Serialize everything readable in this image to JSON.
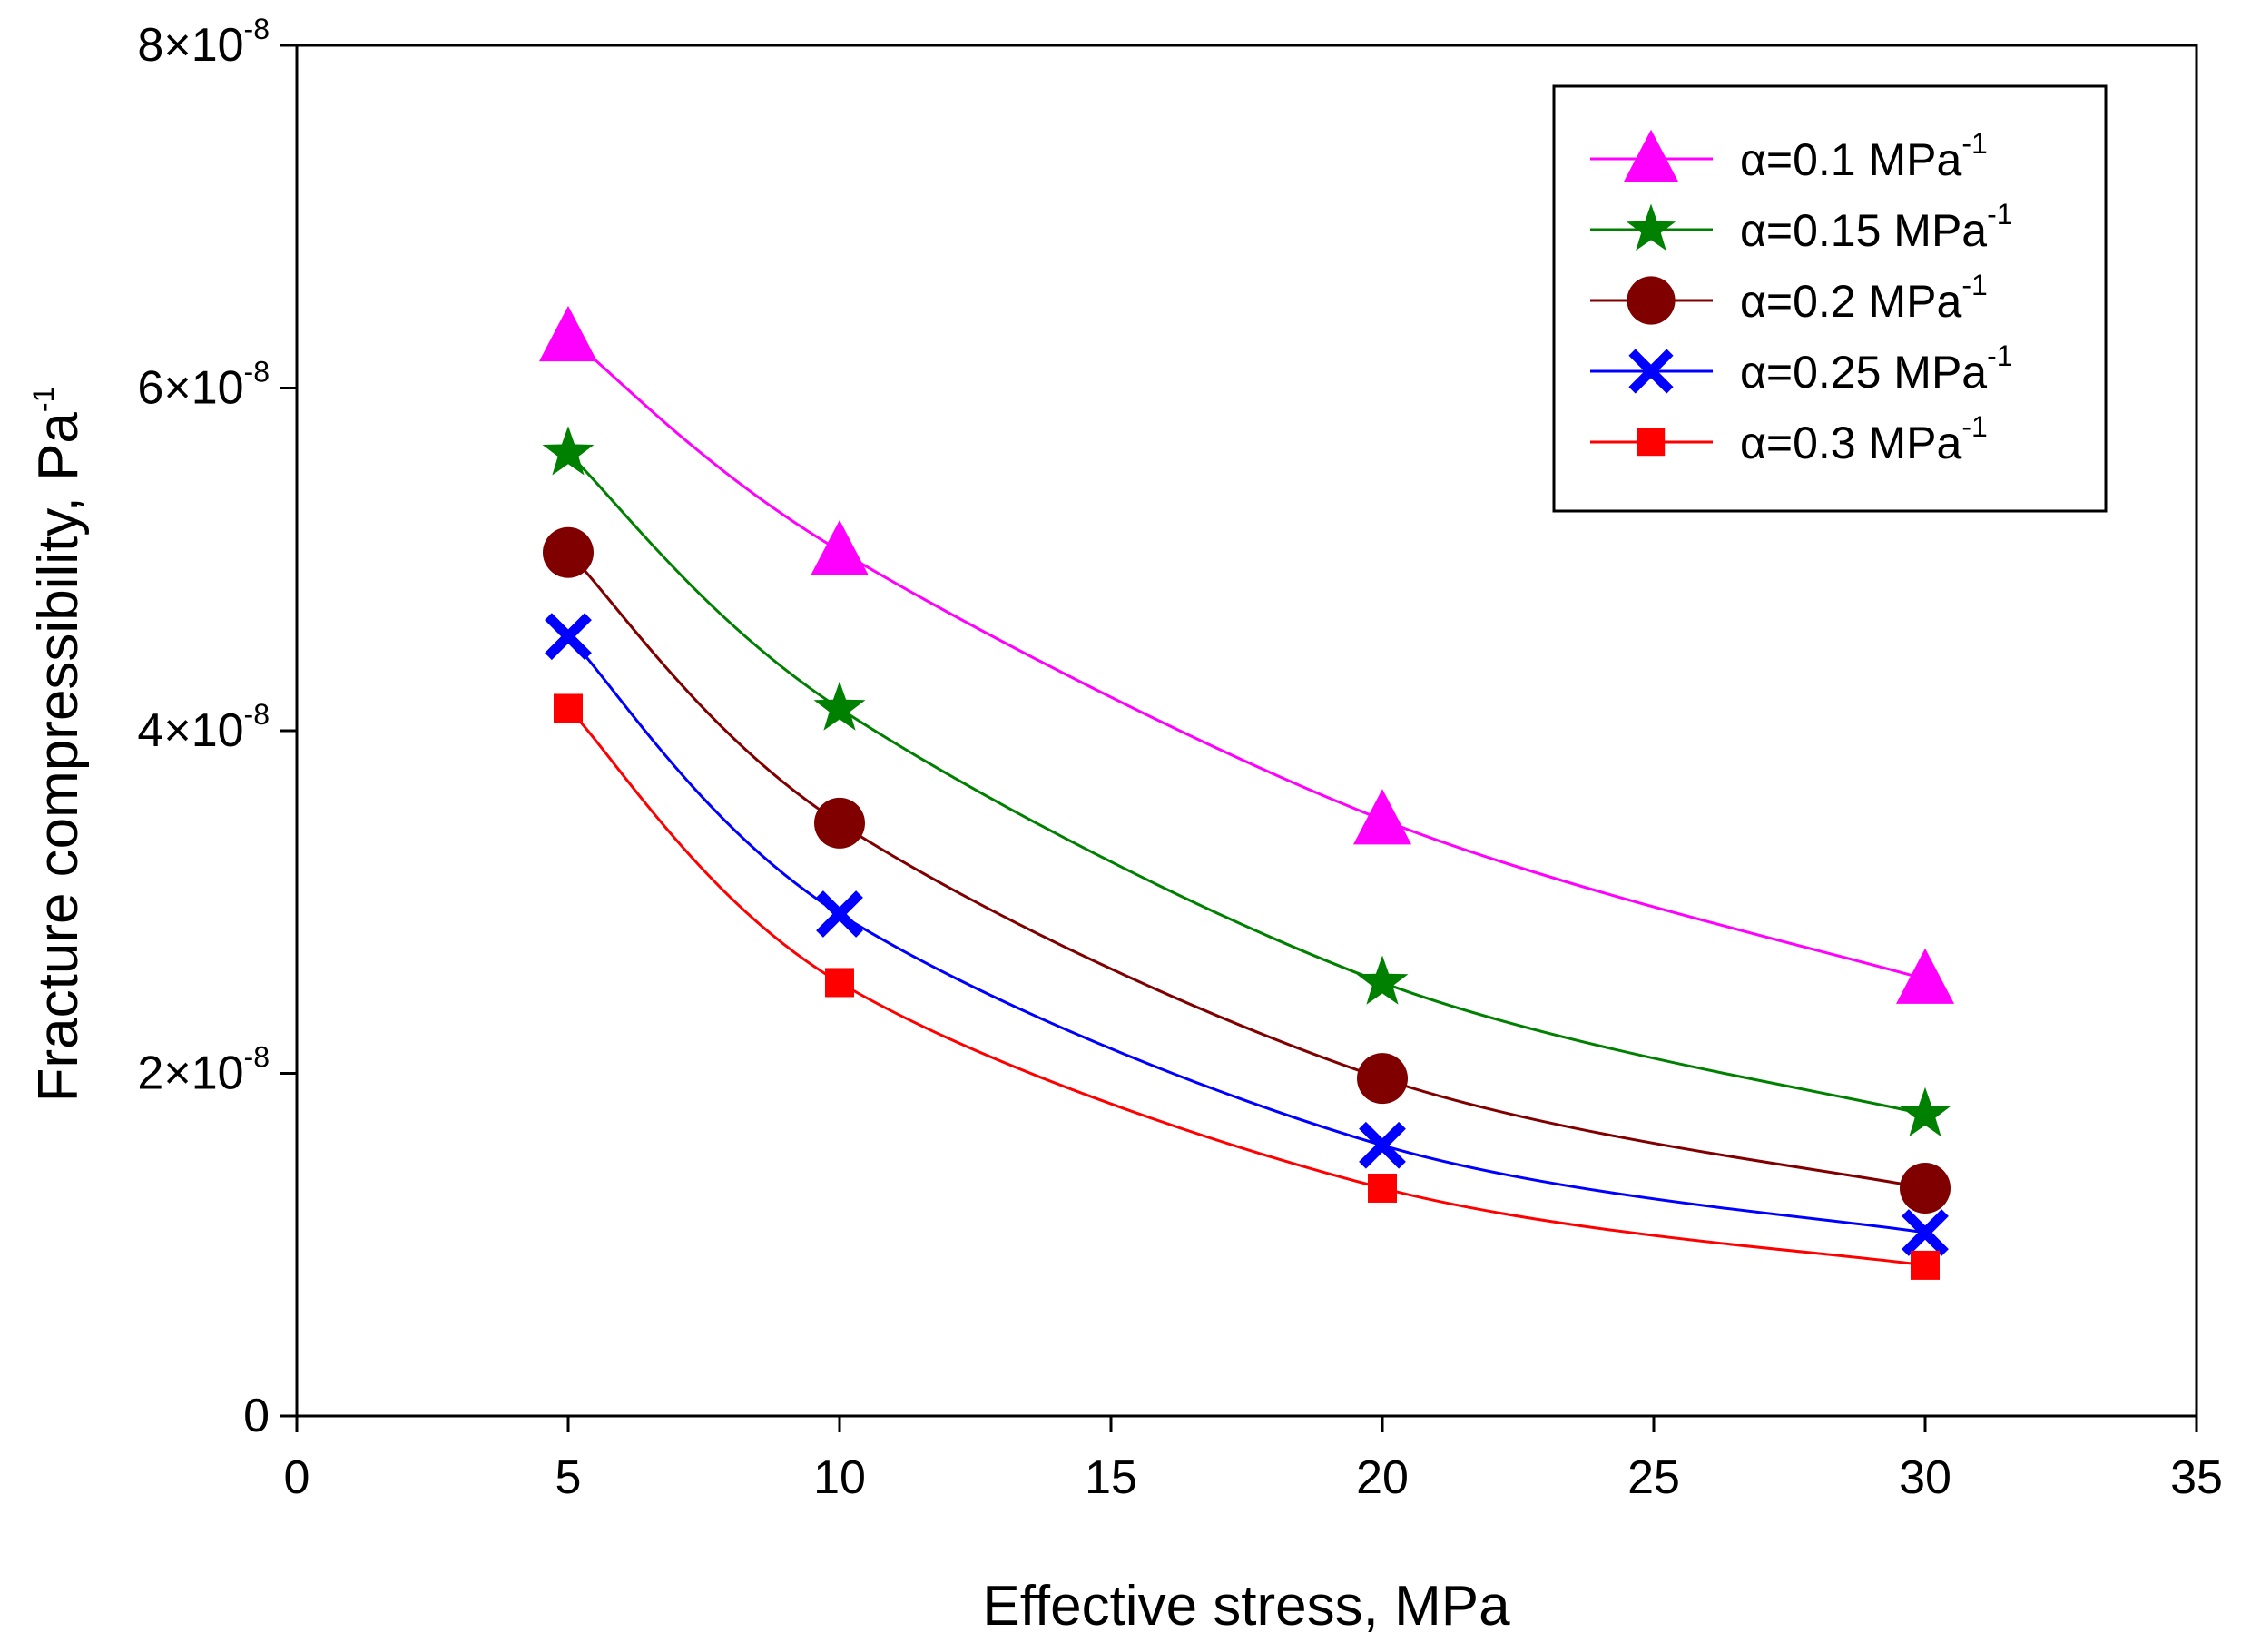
{
  "chart_data": {
    "type": "line",
    "title": "",
    "xlabel": "Effective stress, MPa",
    "ylabel": "Fracture compressibility, Pa",
    "ylabel_sup": "-1",
    "xlim": [
      0,
      35
    ],
    "ylim": [
      0,
      8e-08
    ],
    "x_ticks": [
      0,
      5,
      10,
      15,
      20,
      25,
      30,
      35
    ],
    "x_tick_labels": [
      "0",
      "5",
      "10",
      "15",
      "20",
      "25",
      "30",
      "35"
    ],
    "y_ticks": [
      0,
      2e-08,
      4e-08,
      6e-08,
      8e-08
    ],
    "y_tick_labels": [
      {
        "base": "0",
        "exp": ""
      },
      {
        "base": "2×10",
        "exp": "-8"
      },
      {
        "base": "4×10",
        "exp": "-8"
      },
      {
        "base": "6×10",
        "exp": "-8"
      },
      {
        "base": "8×10",
        "exp": "-8"
      }
    ],
    "grid": false,
    "legend_position": "top-right",
    "x": [
      5,
      10,
      20,
      30
    ],
    "series": [
      {
        "name": "α=0.1 MPa",
        "sup": "-1",
        "marker": "triangle",
        "color": "#FF00FF",
        "values": [
          6.3e-08,
          5.05e-08,
          3.48e-08,
          2.55e-08
        ]
      },
      {
        "name": "α=0.15 MPa",
        "sup": "-1",
        "marker": "star",
        "color": "#008000",
        "values": [
          5.62e-08,
          4.13e-08,
          2.53e-08,
          1.76e-08
        ]
      },
      {
        "name": "α=0.2 MPa",
        "sup": "-1",
        "marker": "circle",
        "color": "#800000",
        "values": [
          5.04e-08,
          3.46e-08,
          1.97e-08,
          1.33e-08
        ]
      },
      {
        "name": "α=0.25 MPa",
        "sup": "-1",
        "marker": "x",
        "color": "#0000FF",
        "values": [
          4.55e-08,
          2.93e-08,
          1.58e-08,
          1.07e-08
        ]
      },
      {
        "name": "α=0.3 MPa",
        "sup": "-1",
        "marker": "square",
        "color": "#FF0000",
        "values": [
          4.13e-08,
          2.53e-08,
          1.33e-08,
          8.8e-09
        ]
      }
    ]
  }
}
